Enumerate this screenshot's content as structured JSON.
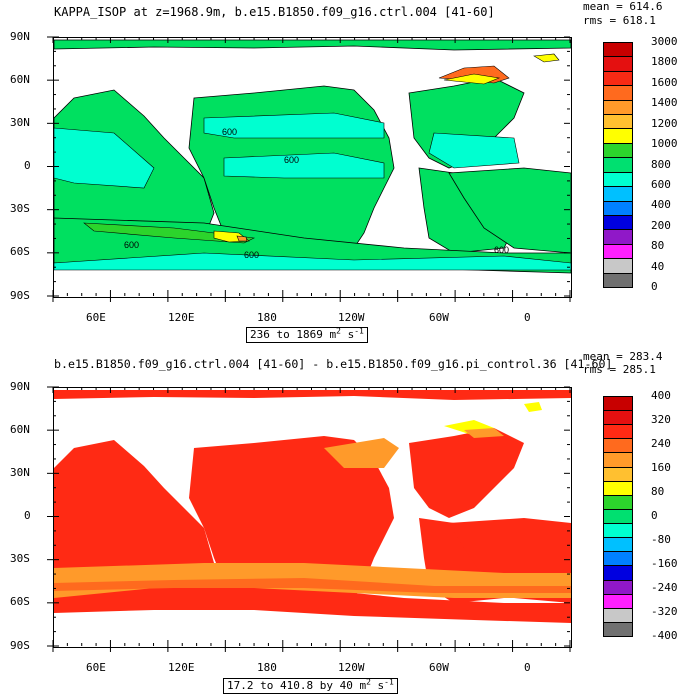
{
  "panel1": {
    "title": "KAPPA_ISOP at z=1968.9m, b.e15.B1850.f09_g16.ctrl.004 [41-60]",
    "mean_label": "mean = 614.6",
    "rms_label": "rms = 618.1",
    "range_text": "236 to 1869",
    "unit_text": "m",
    "unit_exp": "2",
    "unit_tail": "s",
    "unit_tail_exp": "-1",
    "colorbar_labels": [
      "3000",
      "1800",
      "1600",
      "1400",
      "1200",
      "1000",
      "800",
      "600",
      "400",
      "200",
      "80",
      "40",
      "0"
    ],
    "colorbar_colors": [
      "#c80000",
      "#e41010",
      "#f82a14",
      "#ff6a1e",
      "#ff9a2a",
      "#ffc030",
      "#ffff00",
      "#2cd42c",
      "#00e070",
      "#00ffd0",
      "#00c0ff",
      "#0080ff",
      "#0000e0",
      "#9018c8",
      "#ff20ff",
      "#c8c8c8",
      "#707070"
    ],
    "contour_labels": [
      "600",
      "600",
      "600",
      "600",
      "600"
    ]
  },
  "panel2": {
    "title": "b.e15.B1850.f09_g16.ctrl.004 [41-60] - b.e15.B1850.f09_g16.pi_control.36 [41-60]",
    "mean_label": "mean = 283.4",
    "rms_label": "rms = 285.1",
    "range_text": "17.2 to 410.8 by 40",
    "unit_text": "m",
    "unit_exp": "2",
    "unit_tail": "s",
    "unit_tail_exp": "-1",
    "colorbar_labels": [
      "400",
      "320",
      "240",
      "160",
      "80",
      "0",
      "-80",
      "-160",
      "-240",
      "-320",
      "-400"
    ],
    "colorbar_colors": [
      "#c80000",
      "#e41010",
      "#ff2a14",
      "#ff6a1e",
      "#ff9a2a",
      "#ffc030",
      "#ffff00",
      "#2cd42c",
      "#00e070",
      "#00ffd0",
      "#00c0ff",
      "#0080ff",
      "#0000e0",
      "#9018c8",
      "#ff20ff",
      "#c8c8c8",
      "#707070"
    ]
  },
  "axes": {
    "lat_labels": [
      "90N",
      "60N",
      "30N",
      "0",
      "30S",
      "60S",
      "90S"
    ],
    "lon_labels": [
      "60E",
      "120E",
      "180",
      "120W",
      "60W",
      "0"
    ]
  },
  "colors": {
    "ocean_green": "#00e060",
    "cyan": "#00ffd0",
    "lime": "#2cd42c",
    "yellow": "#ffff00",
    "orange": "#ff9a2a",
    "red": "#ff2a14",
    "dark_orange": "#ff6a1e"
  }
}
